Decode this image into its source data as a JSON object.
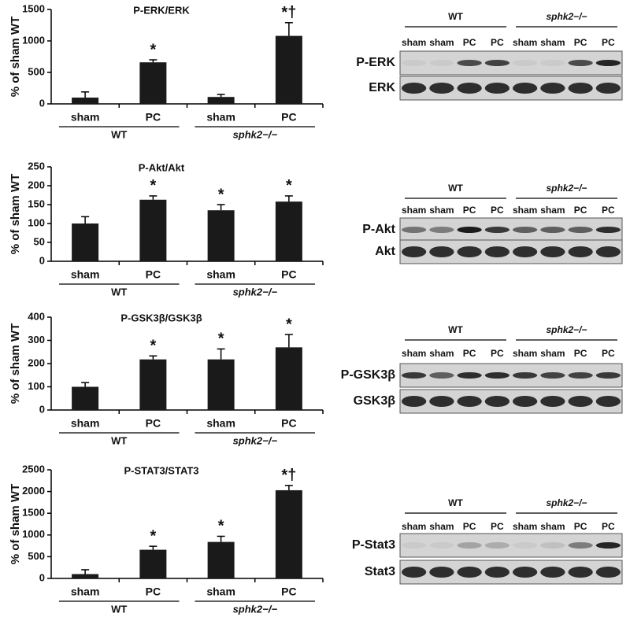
{
  "chart_data": [
    {
      "type": "bar",
      "title": "P-ERK/ERK",
      "y_label": "% of sham WT",
      "categories": [
        "sham",
        "PC",
        "sham",
        "PC"
      ],
      "groups": [
        "WT",
        "sphk2−/−"
      ],
      "values": [
        100,
        660,
        110,
        1080
      ],
      "errors": [
        90,
        40,
        40,
        210
      ],
      "annotations": [
        null,
        "*",
        null,
        "*†"
      ],
      "color": "#1a1a1a",
      "ylim": [
        0,
        1500
      ],
      "yticks": [
        0,
        500,
        1000,
        1500
      ]
    },
    {
      "type": "bar",
      "title": "P-Akt/Akt",
      "y_label": "% of sham WT",
      "categories": [
        "sham",
        "PC",
        "sham",
        "PC"
      ],
      "groups": [
        "WT",
        "sphk2−/−"
      ],
      "values": [
        100,
        163,
        135,
        158
      ],
      "errors": [
        18,
        10,
        15,
        15
      ],
      "annotations": [
        null,
        "*",
        "*",
        "*"
      ],
      "color": "#1a1a1a",
      "ylim": [
        0,
        250
      ],
      "yticks": [
        0,
        50,
        100,
        150,
        200,
        250
      ]
    },
    {
      "type": "bar",
      "title": "P-GSK3β/GSK3β",
      "y_label": "% of sham WT",
      "categories": [
        "sham",
        "PC",
        "sham",
        "PC"
      ],
      "groups": [
        "WT",
        "sphk2−/−"
      ],
      "values": [
        100,
        218,
        218,
        270
      ],
      "errors": [
        18,
        15,
        45,
        55
      ],
      "annotations": [
        null,
        "*",
        "*",
        "*"
      ],
      "color": "#1a1a1a",
      "ylim": [
        0,
        400
      ],
      "yticks": [
        0,
        100,
        200,
        300,
        400
      ]
    },
    {
      "type": "bar",
      "title": "P-STAT3/STAT3",
      "y_label": "% of sham WT",
      "categories": [
        "sham",
        "PC",
        "sham",
        "PC"
      ],
      "groups": [
        "WT",
        "sphk2−/−"
      ],
      "values": [
        100,
        660,
        840,
        2030
      ],
      "errors": [
        100,
        80,
        130,
        110
      ],
      "annotations": [
        null,
        "*",
        "*",
        "*†"
      ],
      "color": "#1a1a1a",
      "ylim": [
        0,
        2500
      ],
      "yticks": [
        0,
        500,
        1000,
        1500,
        2000,
        2500
      ]
    }
  ],
  "blots": [
    {
      "groups": [
        "WT",
        "sphk2−/−"
      ],
      "lanes": [
        "sham",
        "sham",
        "PC",
        "PC",
        "sham",
        "sham",
        "PC",
        "PC"
      ],
      "rows": [
        "P-ERK",
        "ERK"
      ]
    },
    {
      "groups": [
        "WT",
        "sphk2−/−"
      ],
      "lanes": [
        "sham",
        "sham",
        "PC",
        "PC",
        "sham",
        "sham",
        "PC",
        "PC"
      ],
      "rows": [
        "P-Akt",
        "Akt"
      ]
    },
    {
      "groups": [
        "WT",
        "sphk2−/−"
      ],
      "lanes": [
        "sham",
        "sham",
        "PC",
        "PC",
        "sham",
        "sham",
        "PC",
        "PC"
      ],
      "rows": [
        "P-GSK3β",
        "GSK3β"
      ]
    },
    {
      "groups": [
        "WT",
        "sphk2−/−"
      ],
      "lanes": [
        "sham",
        "sham",
        "PC",
        "PC",
        "sham",
        "sham",
        "PC",
        "PC"
      ],
      "rows": [
        "P-Stat3",
        "Stat3"
      ]
    }
  ]
}
